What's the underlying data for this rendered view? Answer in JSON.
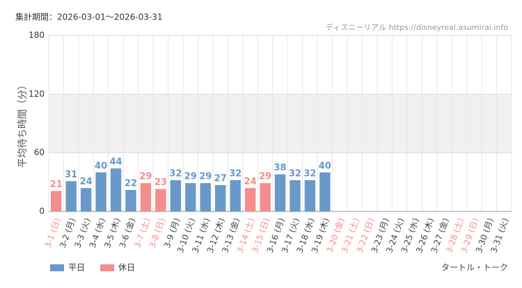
{
  "chart_data": {
    "type": "bar",
    "period": "集計期間：2026-03-01～2026-03-31",
    "source": "ディズニーリアル https://disneyreal.asumirai.info",
    "y_label": "平均待ち時間（分）",
    "footer": "タートル・トーク",
    "categories": [
      "3-1 (日)",
      "3-2 (月)",
      "3-3 (火)",
      "3-4 (水)",
      "3-5 (木)",
      "3-6 (金)",
      "3-7 (土)",
      "3-8 (日)",
      "3-9 (月)",
      "3-10 (火)",
      "3-11 (水)",
      "3-12 (木)",
      "3-13 (金)",
      "3-14 (土)",
      "3-15 (日)",
      "3-16 (月)",
      "3-17 (火)",
      "3-18 (水)",
      "3-19 (木)",
      "3-20 (金)",
      "3-21 (土)",
      "3-22 (日)",
      "3-23 (月)",
      "3-24 (火)",
      "3-25 (水)",
      "3-26 (木)",
      "3-27 (金)",
      "3-28 (土)",
      "3-29 (日)",
      "3-30 (月)",
      "3-31 (火)"
    ],
    "holiday": [
      true,
      false,
      false,
      false,
      false,
      false,
      true,
      true,
      false,
      false,
      false,
      false,
      false,
      true,
      true,
      false,
      false,
      false,
      false,
      true,
      true,
      true,
      false,
      false,
      false,
      false,
      false,
      true,
      true,
      false,
      false
    ],
    "series": [
      {
        "name": "平日",
        "color": "#6a98c9",
        "values": [
          null,
          31,
          24,
          40,
          44,
          22,
          null,
          null,
          32,
          29,
          29,
          27,
          32,
          null,
          null,
          38,
          32,
          32,
          40,
          null,
          null,
          null,
          null,
          null,
          null,
          null,
          null,
          null,
          null,
          null,
          null
        ]
      },
      {
        "name": "休日",
        "color": "#f48d8f",
        "values": [
          21,
          null,
          null,
          null,
          null,
          null,
          29,
          23,
          null,
          null,
          null,
          null,
          null,
          24,
          29,
          null,
          null,
          null,
          null,
          null,
          null,
          null,
          null,
          null,
          null,
          null,
          null,
          null,
          null,
          null,
          null
        ]
      }
    ],
    "weekday_label_color": "#444444",
    "ylim": [
      0,
      180
    ],
    "yticks": [
      0,
      60,
      120,
      180
    ],
    "shaded_range": [
      60,
      120
    ],
    "grid": true,
    "legend": "bottom-left"
  }
}
